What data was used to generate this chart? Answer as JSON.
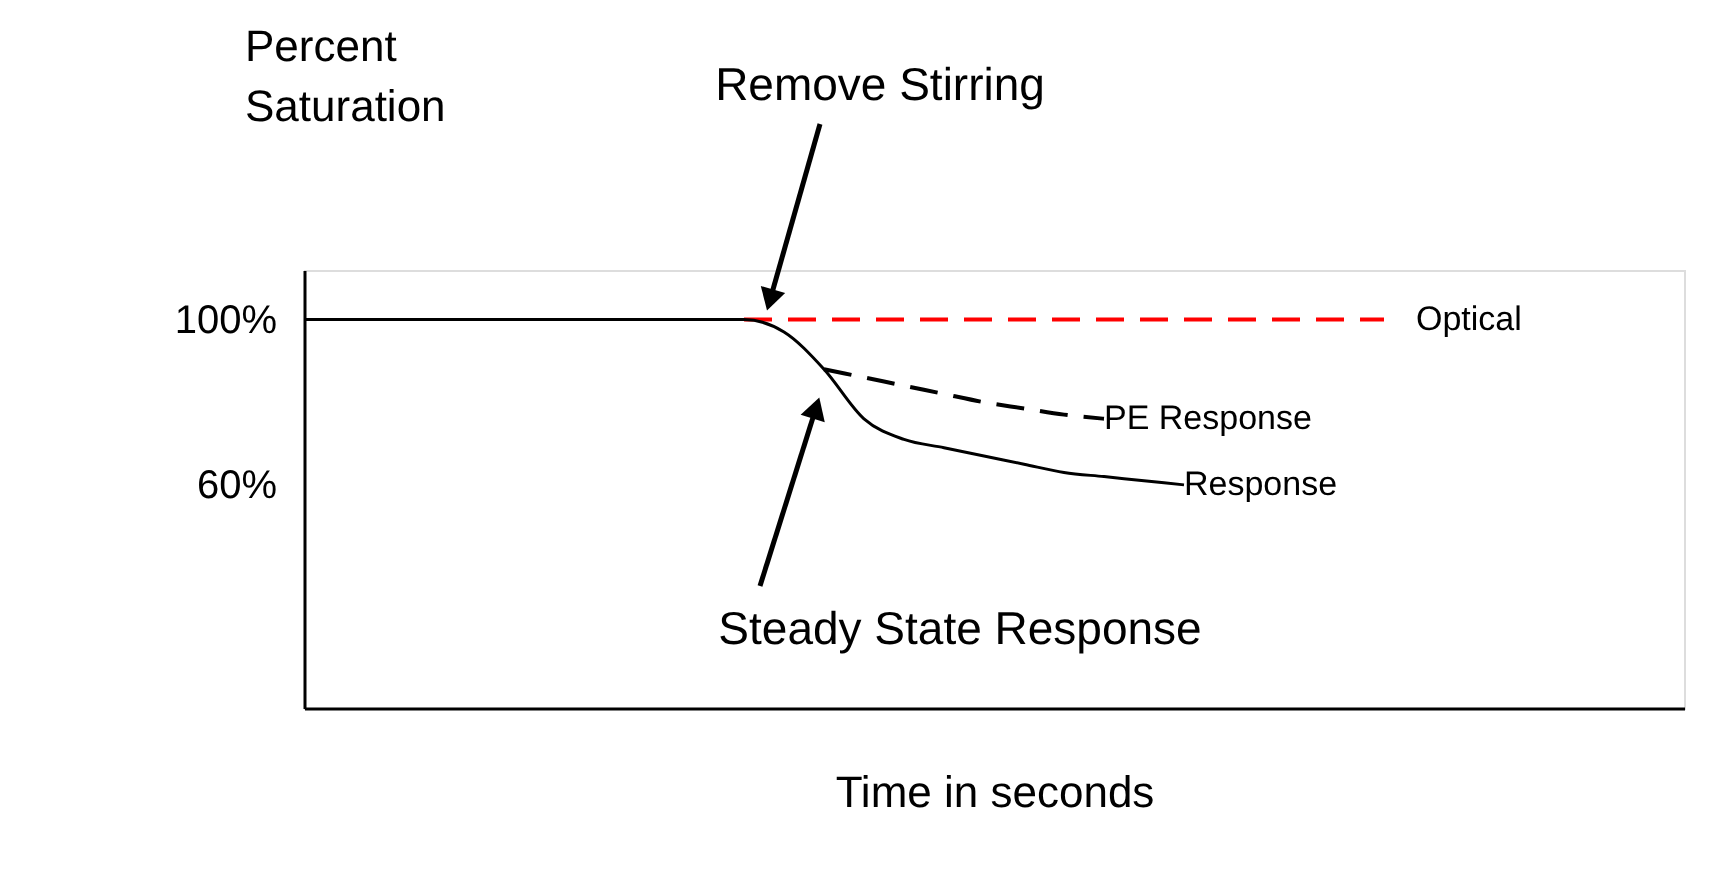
{
  "chart_data": {
    "type": "line",
    "ylabel": "Percent Saturation",
    "xlabel": "Time in seconds",
    "categories": [
      null,
      null,
      null,
      null,
      null,
      null,
      null,
      null,
      null,
      null,
      null,
      null,
      null,
      null,
      null,
      null,
      null,
      null,
      null,
      null,
      null,
      null,
      null,
      null,
      null,
      null,
      null,
      null,
      null,
      null,
      null,
      null,
      null,
      null,
      null
    ],
    "series": [
      {
        "name": "Optical",
        "color": "#ff0000",
        "line_style": "dashed",
        "values": [
          null,
          null,
          null,
          null,
          null,
          null,
          null,
          null,
          null,
          null,
          null,
          100,
          100,
          100,
          100,
          100,
          100,
          100,
          100,
          100,
          100,
          100,
          100,
          100,
          100,
          100,
          100,
          100,
          null,
          null,
          null,
          null,
          null,
          null,
          null
        ]
      },
      {
        "name": "PE Response",
        "color": "#000000",
        "line_style": "dashed",
        "values": [
          null,
          null,
          null,
          null,
          null,
          null,
          null,
          null,
          null,
          null,
          null,
          null,
          null,
          88,
          86,
          84,
          82,
          80,
          78.5,
          77,
          76,
          null,
          null,
          null,
          null,
          null,
          null,
          null,
          null,
          null,
          null,
          null,
          null,
          null,
          null
        ]
      },
      {
        "name": "Response",
        "color": "#000000",
        "line_style": "solid",
        "values": [
          100,
          100,
          100,
          100,
          100,
          100,
          100,
          100,
          100,
          100,
          100,
          100,
          97,
          88,
          76,
          71,
          69,
          67,
          65,
          63,
          62,
          61,
          60,
          null,
          null,
          null,
          null,
          null,
          null,
          null,
          null,
          null,
          null,
          null,
          null
        ]
      }
    ],
    "ylim": [
      6,
      112
    ],
    "yticks": [
      {
        "value": 100,
        "label": "100%"
      },
      {
        "value": 60,
        "label": "60%"
      }
    ],
    "grid": false,
    "marker": "none",
    "annotations": [
      "Remove Stirring",
      "Steady State Response"
    ]
  }
}
